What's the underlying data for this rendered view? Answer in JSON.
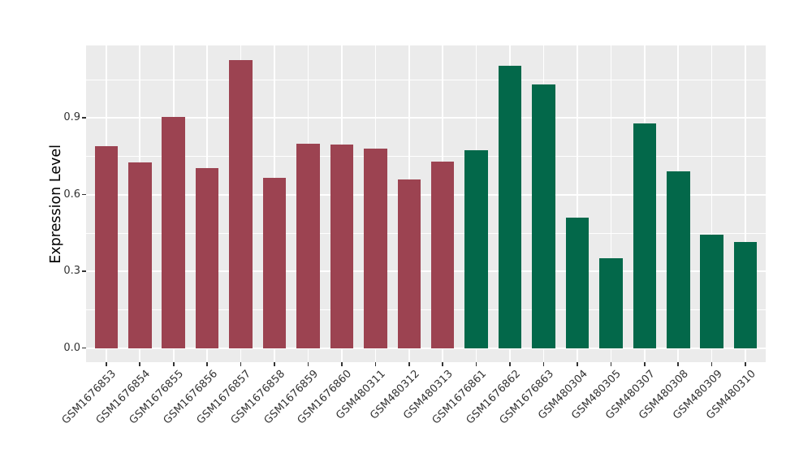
{
  "chart_data": {
    "type": "bar",
    "title": "",
    "xlabel": "",
    "ylabel": "Expression Level",
    "ylim": [
      -0.06,
      1.18
    ],
    "y_ticks": [
      0.0,
      0.3,
      0.6,
      0.9
    ],
    "y_minor_ticks": [
      0.15,
      0.45,
      0.75,
      1.05
    ],
    "grid": "on",
    "legend": "none",
    "categories": [
      "GSM1676853",
      "GSM1676854",
      "GSM1676855",
      "GSM1676856",
      "GSM1676857",
      "GSM1676858",
      "GSM1676859",
      "GSM1676860",
      "GSM480311",
      "GSM480312",
      "GSM480313",
      "GSM1676861",
      "GSM1676862",
      "GSM1676863",
      "GSM480304",
      "GSM480305",
      "GSM480307",
      "GSM480308",
      "GSM480309",
      "GSM480310"
    ],
    "values": [
      0.79,
      0.725,
      0.905,
      0.705,
      1.125,
      0.665,
      0.8,
      0.797,
      0.78,
      0.66,
      0.73,
      0.775,
      1.105,
      1.03,
      0.51,
      0.35,
      0.878,
      0.69,
      0.445,
      0.415
    ],
    "bar_groups": [
      "group1",
      "group1",
      "group1",
      "group1",
      "group1",
      "group1",
      "group1",
      "group1",
      "group1",
      "group1",
      "group1",
      "group2",
      "group2",
      "group2",
      "group2",
      "group2",
      "group2",
      "group2",
      "group2",
      "group2"
    ],
    "group_colors": {
      "group1": "#9C4351",
      "group2": "#03684A"
    },
    "panel_background": "#EBEBEB",
    "gridline_color": "#FFFFFF",
    "axis_text_color": "#333333",
    "axis_title_color": "#000000",
    "tick_mark_color": "#333333"
  }
}
